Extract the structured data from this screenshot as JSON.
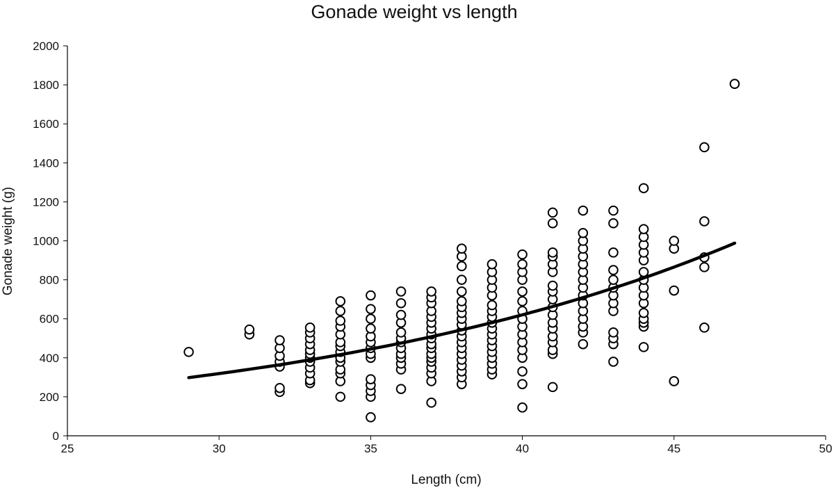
{
  "chart_data": {
    "type": "scatter",
    "title": "Gonade weight vs length",
    "xlabel": "Length (cm)",
    "ylabel": "Gonade weight (g)",
    "xlim": [
      25,
      50
    ],
    "ylim": [
      0,
      2000
    ],
    "xticks": [
      25,
      30,
      35,
      40,
      45,
      50
    ],
    "yticks": [
      0,
      200,
      400,
      600,
      800,
      1000,
      1200,
      1400,
      1600,
      1800,
      2000
    ],
    "grid": false,
    "legend": "none",
    "marker_colors": {
      "stroke": "#000000",
      "fill": "#ffffff"
    },
    "trendline": {
      "type": "exponential",
      "a": 43.4,
      "b": 0.0665,
      "x_range": [
        29,
        47
      ],
      "color": "#000000"
    },
    "series": [
      {
        "name": "Gonade weight",
        "points": [
          [
            29,
            430
          ],
          [
            31,
            520
          ],
          [
            31,
            545
          ],
          [
            32,
            225
          ],
          [
            32,
            245
          ],
          [
            32,
            355
          ],
          [
            32,
            380
          ],
          [
            32,
            410
          ],
          [
            32,
            450
          ],
          [
            32,
            490
          ],
          [
            33,
            270
          ],
          [
            33,
            285
          ],
          [
            33,
            320
          ],
          [
            33,
            350
          ],
          [
            33,
            380
          ],
          [
            33,
            400
          ],
          [
            33,
            420
          ],
          [
            33,
            440
          ],
          [
            33,
            470
          ],
          [
            33,
            500
          ],
          [
            33,
            530
          ],
          [
            33,
            555
          ],
          [
            34,
            200
          ],
          [
            34,
            280
          ],
          [
            34,
            320
          ],
          [
            34,
            340
          ],
          [
            34,
            380
          ],
          [
            34,
            400
          ],
          [
            34,
            430
          ],
          [
            34,
            460
          ],
          [
            34,
            480
          ],
          [
            34,
            520
          ],
          [
            34,
            560
          ],
          [
            34,
            590
          ],
          [
            34,
            640
          ],
          [
            34,
            690
          ],
          [
            35,
            95
          ],
          [
            35,
            200
          ],
          [
            35,
            230
          ],
          [
            35,
            260
          ],
          [
            35,
            290
          ],
          [
            35,
            400
          ],
          [
            35,
            420
          ],
          [
            35,
            450
          ],
          [
            35,
            480
          ],
          [
            35,
            510
          ],
          [
            35,
            550
          ],
          [
            35,
            600
          ],
          [
            35,
            650
          ],
          [
            35,
            720
          ],
          [
            36,
            240
          ],
          [
            36,
            340
          ],
          [
            36,
            370
          ],
          [
            36,
            400
          ],
          [
            36,
            420
          ],
          [
            36,
            450
          ],
          [
            36,
            480
          ],
          [
            36,
            500
          ],
          [
            36,
            530
          ],
          [
            36,
            580
          ],
          [
            36,
            620
          ],
          [
            36,
            680
          ],
          [
            36,
            740
          ],
          [
            37,
            170
          ],
          [
            37,
            280
          ],
          [
            37,
            320
          ],
          [
            37,
            350
          ],
          [
            37,
            380
          ],
          [
            37,
            400
          ],
          [
            37,
            420
          ],
          [
            37,
            450
          ],
          [
            37,
            470
          ],
          [
            37,
            500
          ],
          [
            37,
            520
          ],
          [
            37,
            550
          ],
          [
            37,
            580
          ],
          [
            37,
            610
          ],
          [
            37,
            640
          ],
          [
            37,
            680
          ],
          [
            37,
            710
          ],
          [
            37,
            740
          ],
          [
            38,
            265
          ],
          [
            38,
            300
          ],
          [
            38,
            330
          ],
          [
            38,
            360
          ],
          [
            38,
            390
          ],
          [
            38,
            420
          ],
          [
            38,
            450
          ],
          [
            38,
            480
          ],
          [
            38,
            510
          ],
          [
            38,
            540
          ],
          [
            38,
            570
          ],
          [
            38,
            600
          ],
          [
            38,
            630
          ],
          [
            38,
            660
          ],
          [
            38,
            690
          ],
          [
            38,
            740
          ],
          [
            38,
            800
          ],
          [
            38,
            870
          ],
          [
            38,
            920
          ],
          [
            38,
            960
          ],
          [
            39,
            315
          ],
          [
            39,
            340
          ],
          [
            39,
            370
          ],
          [
            39,
            400
          ],
          [
            39,
            430
          ],
          [
            39,
            460
          ],
          [
            39,
            490
          ],
          [
            39,
            520
          ],
          [
            39,
            550
          ],
          [
            39,
            580
          ],
          [
            39,
            610
          ],
          [
            39,
            640
          ],
          [
            39,
            670
          ],
          [
            39,
            720
          ],
          [
            39,
            760
          ],
          [
            39,
            800
          ],
          [
            39,
            840
          ],
          [
            39,
            880
          ],
          [
            40,
            145
          ],
          [
            40,
            265
          ],
          [
            40,
            330
          ],
          [
            40,
            400
          ],
          [
            40,
            440
          ],
          [
            40,
            480
          ],
          [
            40,
            520
          ],
          [
            40,
            560
          ],
          [
            40,
            600
          ],
          [
            40,
            640
          ],
          [
            40,
            690
          ],
          [
            40,
            740
          ],
          [
            40,
            800
          ],
          [
            40,
            840
          ],
          [
            40,
            880
          ],
          [
            40,
            930
          ],
          [
            41,
            250
          ],
          [
            41,
            420
          ],
          [
            41,
            440
          ],
          [
            41,
            480
          ],
          [
            41,
            510
          ],
          [
            41,
            550
          ],
          [
            41,
            580
          ],
          [
            41,
            620
          ],
          [
            41,
            660
          ],
          [
            41,
            700
          ],
          [
            41,
            740
          ],
          [
            41,
            770
          ],
          [
            41,
            840
          ],
          [
            41,
            880
          ],
          [
            41,
            920
          ],
          [
            41,
            940
          ],
          [
            41,
            1090
          ],
          [
            41,
            1145
          ],
          [
            42,
            470
          ],
          [
            42,
            530
          ],
          [
            42,
            560
          ],
          [
            42,
            600
          ],
          [
            42,
            640
          ],
          [
            42,
            680
          ],
          [
            42,
            720
          ],
          [
            42,
            760
          ],
          [
            42,
            800
          ],
          [
            42,
            840
          ],
          [
            42,
            880
          ],
          [
            42,
            920
          ],
          [
            42,
            960
          ],
          [
            42,
            1000
          ],
          [
            42,
            1040
          ],
          [
            42,
            1155
          ],
          [
            43,
            380
          ],
          [
            43,
            470
          ],
          [
            43,
            500
          ],
          [
            43,
            530
          ],
          [
            43,
            640
          ],
          [
            43,
            680
          ],
          [
            43,
            720
          ],
          [
            43,
            760
          ],
          [
            43,
            800
          ],
          [
            43,
            850
          ],
          [
            43,
            940
          ],
          [
            43,
            1090
          ],
          [
            43,
            1155
          ],
          [
            44,
            455
          ],
          [
            44,
            560
          ],
          [
            44,
            580
          ],
          [
            44,
            600
          ],
          [
            44,
            630
          ],
          [
            44,
            680
          ],
          [
            44,
            720
          ],
          [
            44,
            760
          ],
          [
            44,
            800
          ],
          [
            44,
            840
          ],
          [
            44,
            900
          ],
          [
            44,
            940
          ],
          [
            44,
            980
          ],
          [
            44,
            1020
          ],
          [
            44,
            1060
          ],
          [
            44,
            1270
          ],
          [
            45,
            280
          ],
          [
            45,
            745
          ],
          [
            45,
            960
          ],
          [
            45,
            1000
          ],
          [
            46,
            555
          ],
          [
            46,
            865
          ],
          [
            46,
            915
          ],
          [
            46,
            1100
          ],
          [
            46,
            1480
          ],
          [
            47,
            1805
          ]
        ]
      }
    ]
  }
}
